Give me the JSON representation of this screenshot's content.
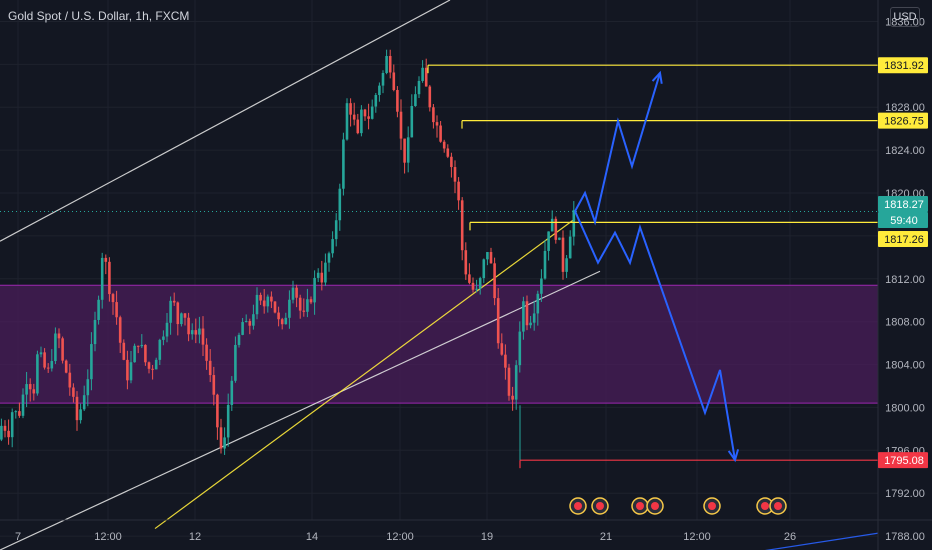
{
  "header": {
    "title": "Gold Spot / U.S. Dollar, 1h, FXCM",
    "currency": "USD"
  },
  "colors": {
    "background": "#131722",
    "bull": "#26a69a",
    "bear": "#ef5350",
    "zone": "#4a1e5a",
    "level": "#ffeb3b",
    "support": "#f23645",
    "projection": "#2962ff",
    "channel": "#e0e0e0",
    "grid": "#1e222d"
  },
  "chart_data": {
    "type": "candlestick",
    "title": "Gold Spot / U.S. Dollar, 1h, FXCM",
    "y_range": [
      1789.5,
      1838
    ],
    "y_ticks": [
      "1836.00",
      "1832.00",
      "1828.00",
      "1824.00",
      "1820.00",
      "1816.00",
      "1812.00",
      "1808.00",
      "1804.00",
      "1800.00",
      "1796.00",
      "1792.00",
      "1788.00"
    ],
    "x_ticks": [
      "7",
      "12:00",
      "12",
      "14",
      "12:00",
      "19",
      "21",
      "12:00",
      "26"
    ],
    "price_labels": [
      {
        "value": "1831.92",
        "kind": "level"
      },
      {
        "value": "1826.75",
        "kind": "level"
      },
      {
        "value": "1818.27",
        "kind": "current"
      },
      {
        "value": "59:40",
        "kind": "timer"
      },
      {
        "value": "1817.26",
        "kind": "level"
      },
      {
        "value": "1795.08",
        "kind": "support"
      }
    ],
    "zone": {
      "from": 1800.4,
      "to": 1811.4
    },
    "levels": [
      1831.92,
      1826.75,
      1817.26,
      1795.08
    ],
    "current_price": 1818.27,
    "price_path": [
      [
        0,
        1797
      ],
      [
        5,
        1798.8
      ],
      [
        10,
        1797.5
      ],
      [
        15,
        1800
      ],
      [
        20,
        1799
      ],
      [
        25,
        1801
      ],
      [
        30,
        1803.5
      ],
      [
        35,
        1801
      ],
      [
        40,
        1805
      ],
      [
        45,
        1804
      ],
      [
        50,
        1803
      ],
      [
        55,
        1805.5
      ],
      [
        60,
        1807
      ],
      [
        65,
        1804
      ],
      [
        70,
        1803
      ],
      [
        75,
        1800.5
      ],
      [
        80,
        1798.5
      ],
      [
        85,
        1801
      ],
      [
        90,
        1803
      ],
      [
        95,
        1806
      ],
      [
        100,
        1810
      ],
      [
        105,
        1815
      ],
      [
        110,
        1812
      ],
      [
        115,
        1810
      ],
      [
        120,
        1808
      ],
      [
        125,
        1804
      ],
      [
        130,
        1803
      ],
      [
        135,
        1804.5
      ],
      [
        140,
        1806.5
      ],
      [
        145,
        1805
      ],
      [
        150,
        1803.5
      ],
      [
        155,
        1804
      ],
      [
        160,
        1805.5
      ],
      [
        165,
        1807
      ],
      [
        170,
        1809
      ],
      [
        175,
        1810
      ],
      [
        180,
        1808
      ],
      [
        185,
        1810
      ],
      [
        190,
        1807
      ],
      [
        195,
        1806.5
      ],
      [
        200,
        1808
      ],
      [
        205,
        1806
      ],
      [
        210,
        1804
      ],
      [
        215,
        1801
      ],
      [
        220,
        1798
      ],
      [
        225,
        1795
      ],
      [
        230,
        1800
      ],
      [
        235,
        1804
      ],
      [
        240,
        1806
      ],
      [
        245,
        1808
      ],
      [
        250,
        1807
      ],
      [
        255,
        1809
      ],
      [
        260,
        1810
      ],
      [
        265,
        1809
      ],
      [
        270,
        1811
      ],
      [
        275,
        1810
      ],
      [
        280,
        1808
      ],
      [
        285,
        1807
      ],
      [
        290,
        1810
      ],
      [
        295,
        1812
      ],
      [
        300,
        1810
      ],
      [
        305,
        1808
      ],
      [
        310,
        1809.5
      ],
      [
        315,
        1811
      ],
      [
        320,
        1813
      ],
      [
        325,
        1812
      ],
      [
        330,
        1814
      ],
      [
        335,
        1815
      ],
      [
        340,
        1819
      ],
      [
        345,
        1824
      ],
      [
        350,
        1829
      ],
      [
        355,
        1827
      ],
      [
        360,
        1825
      ],
      [
        365,
        1828
      ],
      [
        370,
        1827
      ],
      [
        375,
        1828
      ],
      [
        380,
        1830
      ],
      [
        385,
        1831
      ],
      [
        390,
        1833
      ],
      [
        395,
        1831
      ],
      [
        400,
        1828
      ],
      [
        405,
        1823
      ],
      [
        410,
        1824
      ],
      [
        415,
        1829
      ],
      [
        420,
        1830
      ],
      [
        425,
        1831
      ],
      [
        430,
        1829
      ],
      [
        435,
        1827.5
      ],
      [
        440,
        1826
      ],
      [
        445,
        1825
      ],
      [
        450,
        1824
      ],
      [
        455,
        1822
      ],
      [
        460,
        1820
      ],
      [
        465,
        1814
      ],
      [
        470,
        1812
      ],
      [
        475,
        1811
      ],
      [
        480,
        1810.5
      ],
      [
        485,
        1813
      ],
      [
        490,
        1815
      ],
      [
        495,
        1812
      ],
      [
        500,
        1807
      ],
      [
        505,
        1804
      ],
      [
        510,
        1802
      ],
      [
        515,
        1800
      ],
      [
        520,
        1806
      ],
      [
        525,
        1810
      ],
      [
        530,
        1808
      ],
      [
        535,
        1809
      ],
      [
        540,
        1811
      ],
      [
        545,
        1813
      ],
      [
        550,
        1817
      ],
      [
        555,
        1817
      ],
      [
        560,
        1816
      ],
      [
        565,
        1813
      ],
      [
        570,
        1815
      ],
      [
        575,
        1818.3
      ]
    ],
    "projection_up": [
      [
        575,
        1818.3
      ],
      [
        585,
        1820
      ],
      [
        595,
        1817.3
      ],
      [
        618,
        1826.7
      ],
      [
        632,
        1822.5
      ],
      [
        660,
        1831.2
      ]
    ],
    "projection_down": [
      [
        575,
        1818.3
      ],
      [
        598,
        1813.5
      ],
      [
        615,
        1816.3
      ],
      [
        630,
        1813.5
      ],
      [
        640,
        1816.8
      ],
      [
        705,
        1799.5
      ],
      [
        720,
        1803.5
      ],
      [
        735,
        1795.1
      ]
    ],
    "trendlines": [
      {
        "color": "channel",
        "from": [
          0,
          1815.5
        ],
        "to": [
          450,
          1838
        ]
      },
      {
        "color": "channel",
        "from": [
          0,
          1786.7
        ],
        "to": [
          600,
          1812.7
        ]
      },
      {
        "color": "level",
        "from": [
          155,
          1788.7
        ],
        "to": [
          575,
          1817.6
        ]
      },
      {
        "color": "projection",
        "from": [
          720,
          1786
        ],
        "to": [
          880,
          1788.3
        ]
      }
    ]
  }
}
